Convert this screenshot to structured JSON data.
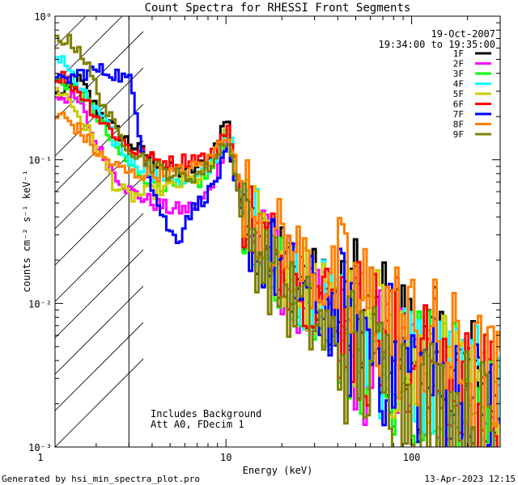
{
  "chart_data": {
    "type": "line",
    "title": "Count Spectra for RHESSI Front Segments",
    "xlabel": "Energy (keV)",
    "ylabel": "counts cm⁻² s⁻¹ keV⁻¹",
    "xscale": "log",
    "yscale": "log",
    "xlim": [
      1.2,
      300
    ],
    "ylim": [
      0.001,
      1.0
    ],
    "x_ticks": [
      {
        "value": 1,
        "label": "1"
      },
      {
        "value": 10,
        "label": "10"
      },
      {
        "value": 100,
        "label": "100"
      }
    ],
    "y_ticks": [
      {
        "value": 0.001,
        "label": "10⁻³"
      },
      {
        "value": 0.01,
        "label": "10⁻²"
      },
      {
        "value": 0.1,
        "label": "10⁻¹"
      },
      {
        "value": 1,
        "label": "10⁰"
      }
    ],
    "date": "19-Oct-2007",
    "time_range": "19:34:00 to 19:35:00",
    "notes": [
      "Includes Background",
      "Att A0, FDecim 1"
    ],
    "shaded_region": {
      "x_from": 1.2,
      "x_to": 3.0,
      "style": "hatched"
    },
    "legend_position": "top-right",
    "series": [
      {
        "name": "1F",
        "color": "#000000",
        "energies": [
          1.3,
          1.6,
          2.0,
          2.5,
          3.0,
          4.0,
          5.0,
          6.0,
          7.0,
          8.0,
          9.0,
          10.0,
          10.5,
          12,
          15,
          20,
          30,
          50,
          80,
          120,
          200,
          300
        ],
        "values": [
          0.28,
          0.36,
          0.22,
          0.16,
          0.13,
          0.1,
          0.085,
          0.08,
          0.09,
          0.1,
          0.14,
          0.22,
          0.1,
          0.05,
          0.03,
          0.02,
          0.012,
          0.008,
          0.006,
          0.004,
          0.0028,
          0.0018
        ]
      },
      {
        "name": "2F",
        "color": "#ff00ff",
        "energies": [
          1.3,
          1.6,
          2.0,
          2.5,
          3.0,
          4.0,
          5.0,
          6.0,
          7.0,
          8.0,
          9.0,
          10.0,
          12,
          15,
          20,
          30,
          50,
          80,
          120,
          200,
          300
        ],
        "values": [
          0.28,
          0.25,
          0.12,
          0.08,
          0.06,
          0.05,
          0.045,
          0.045,
          0.05,
          0.06,
          0.09,
          0.15,
          0.04,
          0.025,
          0.016,
          0.009,
          0.005,
          0.0035,
          0.0025,
          0.0018,
          0.0012
        ]
      },
      {
        "name": "3F",
        "color": "#00ff00",
        "energies": [
          1.3,
          1.6,
          2.0,
          2.5,
          3.0,
          4.0,
          5.0,
          6.0,
          7.0,
          8.0,
          9.0,
          10.0,
          12,
          15,
          20,
          30,
          50,
          80,
          120,
          200,
          300
        ],
        "values": [
          0.35,
          0.3,
          0.2,
          0.12,
          0.09,
          0.07,
          0.065,
          0.065,
          0.07,
          0.08,
          0.11,
          0.16,
          0.045,
          0.028,
          0.017,
          0.01,
          0.006,
          0.004,
          0.003,
          0.002,
          0.0014
        ]
      },
      {
        "name": "4F",
        "color": "#00ffff",
        "energies": [
          1.3,
          1.6,
          2.0,
          2.5,
          3.0,
          4.0,
          5.0,
          6.0,
          7.0,
          8.0,
          9.0,
          10.0,
          12,
          15,
          20,
          30,
          50,
          80,
          120,
          200,
          300
        ],
        "values": [
          0.52,
          0.3,
          0.22,
          0.13,
          0.1,
          0.08,
          0.075,
          0.07,
          0.075,
          0.085,
          0.12,
          0.18,
          0.05,
          0.03,
          0.018,
          0.011,
          0.0065,
          0.0045,
          0.0032,
          0.0022,
          0.0015
        ]
      },
      {
        "name": "5F",
        "color": "#cccc00",
        "energies": [
          1.3,
          1.6,
          2.0,
          2.5,
          3.0,
          4.0,
          5.0,
          6.0,
          7.0,
          8.0,
          9.0,
          10.0,
          12,
          15,
          20,
          30,
          50,
          80,
          120,
          200,
          300
        ],
        "values": [
          0.3,
          0.2,
          0.12,
          0.065,
          0.055,
          0.06,
          0.065,
          0.07,
          0.075,
          0.09,
          0.12,
          0.17,
          0.05,
          0.03,
          0.018,
          0.011,
          0.0065,
          0.0045,
          0.003,
          0.002,
          0.0014
        ]
      },
      {
        "name": "6F",
        "color": "#ff0000",
        "energies": [
          1.3,
          1.6,
          2.0,
          2.5,
          3.0,
          4.0,
          5.0,
          6.0,
          7.0,
          8.0,
          9.0,
          10.0,
          12,
          15,
          20,
          30,
          50,
          80,
          120,
          200,
          300
        ],
        "values": [
          0.38,
          0.3,
          0.2,
          0.15,
          0.12,
          0.1,
          0.095,
          0.1,
          0.105,
          0.1,
          0.13,
          0.18,
          0.05,
          0.03,
          0.02,
          0.012,
          0.007,
          0.005,
          0.0035,
          0.0025,
          0.0017
        ]
      },
      {
        "name": "7F",
        "color": "#0000ff",
        "energies": [
          1.3,
          1.6,
          2.0,
          2.5,
          3.0,
          3.5,
          4.0,
          4.5,
          5.0,
          5.5,
          6.0,
          7.0,
          8.0,
          9.0,
          10.0,
          12,
          15,
          20,
          30,
          50,
          80,
          120,
          200,
          300
        ],
        "values": [
          0.35,
          0.4,
          0.42,
          0.4,
          0.35,
          0.12,
          0.06,
          0.04,
          0.03,
          0.028,
          0.04,
          0.05,
          0.06,
          0.08,
          0.12,
          0.04,
          0.025,
          0.017,
          0.01,
          0.006,
          0.004,
          0.003,
          0.002,
          0.0014
        ]
      },
      {
        "name": "8F",
        "color": "#ff8000",
        "energies": [
          1.3,
          1.6,
          2.0,
          2.5,
          3.0,
          4.0,
          5.0,
          6.0,
          7.0,
          8.0,
          9.0,
          10.0,
          12,
          15,
          20,
          30,
          50,
          80,
          120,
          200,
          300
        ],
        "values": [
          0.2,
          0.16,
          0.11,
          0.09,
          0.08,
          0.08,
          0.08,
          0.085,
          0.09,
          0.1,
          0.13,
          0.16,
          0.06,
          0.04,
          0.025,
          0.016,
          0.01,
          0.007,
          0.005,
          0.0032,
          0.0022
        ]
      },
      {
        "name": "9F",
        "color": "#808000",
        "energies": [
          1.3,
          1.6,
          2.0,
          2.5,
          3.0,
          4.0,
          5.0,
          6.0,
          7.0,
          8.0,
          9.0,
          10.0,
          12,
          15,
          20,
          30,
          50,
          80,
          120,
          200,
          300
        ],
        "values": [
          0.7,
          0.6,
          0.3,
          0.16,
          0.12,
          0.09,
          0.08,
          0.075,
          0.08,
          0.09,
          0.11,
          0.15,
          0.04,
          0.022,
          0.012,
          0.007,
          0.004,
          0.0028,
          0.002,
          0.0015,
          0.0011
        ]
      }
    ]
  },
  "footer": {
    "generated_by": "Generated by hsi_min_spectra_plot.pro",
    "timestamp": "13-Apr-2023 12:15"
  }
}
